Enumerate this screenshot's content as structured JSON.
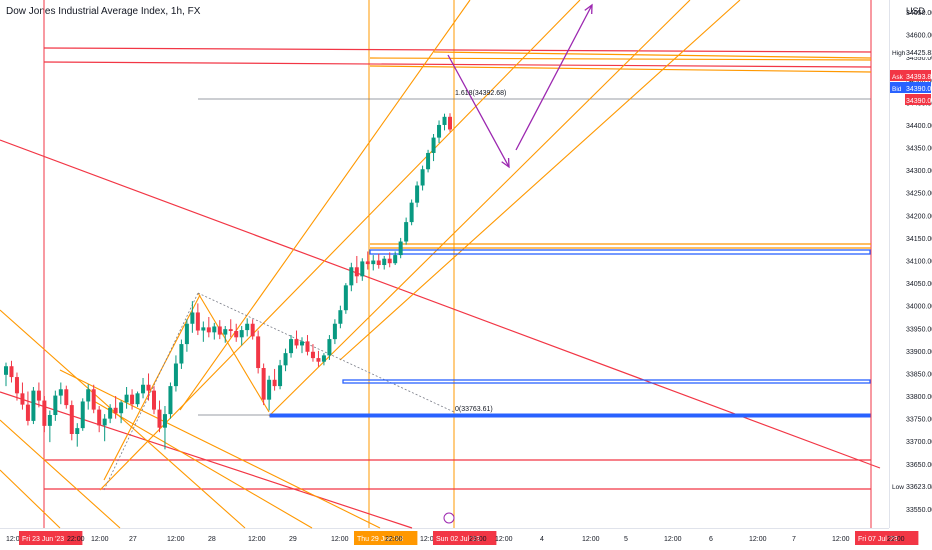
{
  "header": {
    "title": "Dow Jones Industrial Average Index, 1h, FX",
    "currency": "USD"
  },
  "chart_data": {
    "type": "candlestick",
    "ylim": [
      33500,
      34700
    ],
    "y_ticks": [
      34650,
      34600,
      34550,
      34500,
      34450,
      34400,
      34350,
      34300,
      34250,
      34200,
      34150,
      34100,
      34050,
      34000,
      33950,
      33900,
      33850,
      33800,
      33750,
      33700,
      33650,
      33600,
      33550
    ],
    "x_ticks": [
      "12:00",
      "Fri 23 Jun '23",
      "22:00",
      "12:00",
      "27",
      "12:00",
      "28",
      "12:00",
      "29",
      "12:00",
      "Thu 29 Jun '23",
      "22:00",
      "12:00",
      "Sun 02 Jul '23",
      "23:00",
      "12:00",
      "4",
      "12:00",
      "5",
      "12:00",
      "6",
      "12:00",
      "7",
      "12:00",
      "Fri 07 Jul '23",
      "22:00"
    ],
    "colors": {
      "up": "#089981",
      "down": "#f23645",
      "horizontal": "#f23645",
      "channel": "#ff9800",
      "box": "#2962ff",
      "arrow": "#9c27b0"
    },
    "price_labels": [
      {
        "tag": "High",
        "value": "34425.83",
        "color": "#ffffff"
      },
      {
        "tag": "Ask",
        "value": "34393.81",
        "color": "#f23645"
      },
      {
        "tag": "Bid",
        "value": "34390.03",
        "color": "#2962ff"
      },
      {
        "tag": "",
        "value": "34390.03",
        "color": "#f23645"
      },
      {
        "tag": "Low",
        "value": "33623.03",
        "color": "#ffffff"
      }
    ],
    "annotations": {
      "fib_top": "1.618(34392.68)",
      "fib_bottom": "0(33763.61)"
    },
    "candles": [
      [
        33847,
        33874,
        33822,
        33866
      ],
      [
        33866,
        33878,
        33830,
        33842
      ],
      [
        33842,
        33852,
        33790,
        33806
      ],
      [
        33806,
        33830,
        33770,
        33781
      ],
      [
        33781,
        33810,
        33735,
        33745
      ],
      [
        33745,
        33820,
        33738,
        33812
      ],
      [
        33812,
        33830,
        33775,
        33790
      ],
      [
        33790,
        33800,
        33720,
        33734
      ],
      [
        33734,
        33768,
        33698,
        33758
      ],
      [
        33758,
        33812,
        33745,
        33801
      ],
      [
        33801,
        33830,
        33782,
        33815
      ],
      [
        33815,
        33823,
        33772,
        33780
      ],
      [
        33780,
        33790,
        33702,
        33716
      ],
      [
        33716,
        33740,
        33688,
        33729
      ],
      [
        33729,
        33795,
        33723,
        33788
      ],
      [
        33788,
        33826,
        33770,
        33815
      ],
      [
        33815,
        33825,
        33762,
        33770
      ],
      [
        33770,
        33778,
        33720,
        33735
      ],
      [
        33735,
        33760,
        33700,
        33750
      ],
      [
        33750,
        33782,
        33740,
        33774
      ],
      [
        33774,
        33800,
        33750,
        33762
      ],
      [
        33762,
        33790,
        33740,
        33786
      ],
      [
        33786,
        33820,
        33772,
        33803
      ],
      [
        33803,
        33815,
        33770,
        33782
      ],
      [
        33782,
        33810,
        33776,
        33806
      ],
      [
        33806,
        33840,
        33795,
        33825
      ],
      [
        33825,
        33850,
        33790,
        33812
      ],
      [
        33812,
        33822,
        33760,
        33770
      ],
      [
        33770,
        33790,
        33720,
        33730
      ],
      [
        33730,
        33778,
        33682,
        33760
      ],
      [
        33760,
        33830,
        33750,
        33822
      ],
      [
        33822,
        33890,
        33810,
        33872
      ],
      [
        33872,
        33925,
        33860,
        33915
      ],
      [
        33915,
        33970,
        33898,
        33960
      ],
      [
        33960,
        34010,
        33940,
        33985
      ],
      [
        33985,
        34005,
        33935,
        33945
      ],
      [
        33945,
        33965,
        33920,
        33952
      ],
      [
        33952,
        33975,
        33930,
        33941
      ],
      [
        33941,
        33962,
        33925,
        33954
      ],
      [
        33954,
        33968,
        33926,
        33936
      ],
      [
        33936,
        33955,
        33918,
        33948
      ],
      [
        33948,
        33970,
        33930,
        33944
      ],
      [
        33944,
        33960,
        33920,
        33930
      ],
      [
        33930,
        33955,
        33912,
        33946
      ],
      [
        33946,
        33972,
        33932,
        33960
      ],
      [
        33960,
        33970,
        33925,
        33932
      ],
      [
        33932,
        33945,
        33850,
        33862
      ],
      [
        33862,
        33872,
        33780,
        33792
      ],
      [
        33792,
        33845,
        33768,
        33836
      ],
      [
        33836,
        33860,
        33812,
        33822
      ],
      [
        33822,
        33880,
        33815,
        33868
      ],
      [
        33868,
        33905,
        33855,
        33895
      ],
      [
        33895,
        33935,
        33885,
        33926
      ],
      [
        33926,
        33945,
        33905,
        33912
      ],
      [
        33912,
        33930,
        33895,
        33921
      ],
      [
        33921,
        33935,
        33890,
        33898
      ],
      [
        33898,
        33915,
        33876,
        33884
      ],
      [
        33884,
        33900,
        33865,
        33876
      ],
      [
        33876,
        33895,
        33868,
        33890
      ],
      [
        33890,
        33935,
        33880,
        33926
      ],
      [
        33926,
        33970,
        33915,
        33960
      ],
      [
        33960,
        34000,
        33950,
        33990
      ],
      [
        33990,
        34050,
        33982,
        34045
      ],
      [
        34045,
        34095,
        34032,
        34085
      ],
      [
        34085,
        34110,
        34050,
        34065
      ],
      [
        34065,
        34105,
        34055,
        34098
      ],
      [
        34098,
        34120,
        34080,
        34092
      ],
      [
        34092,
        34112,
        34078,
        34100
      ],
      [
        34100,
        34115,
        34082,
        34090
      ],
      [
        34090,
        34110,
        34080,
        34104
      ],
      [
        34104,
        34118,
        34085,
        34094
      ],
      [
        34094,
        34120,
        34090,
        34112
      ],
      [
        34112,
        34150,
        34105,
        34142
      ],
      [
        34142,
        34195,
        34135,
        34185
      ],
      [
        34185,
        34235,
        34178,
        34228
      ],
      [
        34228,
        34275,
        34218,
        34266
      ],
      [
        34266,
        34310,
        34255,
        34302
      ],
      [
        34302,
        34345,
        34295,
        34338
      ],
      [
        34338,
        34380,
        34320,
        34372
      ],
      [
        34372,
        34410,
        34360,
        34400
      ],
      [
        34400,
        34425,
        34388,
        34418
      ],
      [
        34418,
        34426,
        34385,
        34390
      ]
    ]
  }
}
